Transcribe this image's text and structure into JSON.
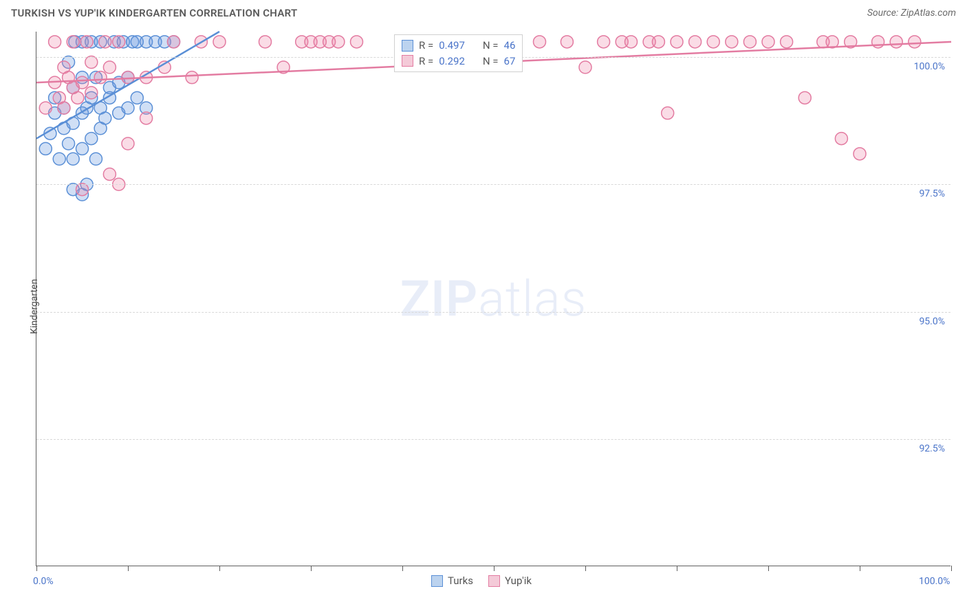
{
  "title": "TURKISH VS YUP'IK KINDERGARTEN CORRELATION CHART",
  "source": "Source: ZipAtlas.com",
  "ylabel": "Kindergarten",
  "watermark_bold": "ZIP",
  "watermark_light": "atlas",
  "chart": {
    "type": "scatter",
    "background_color": "#ffffff",
    "grid_color": "#d8d8d8",
    "axis_color": "#5e5e5e",
    "xlim": [
      0,
      100
    ],
    "ylim": [
      90,
      100.5
    ],
    "ytick_values": [
      92.5,
      95.0,
      97.5,
      100.0
    ],
    "ytick_labels": [
      "92.5%",
      "95.0%",
      "97.5%",
      "100.0%"
    ],
    "xtick_values": [
      0,
      10,
      20,
      30,
      40,
      50,
      60,
      70,
      80,
      90,
      100
    ],
    "xtick_label_left": "0.0%",
    "xtick_label_right": "100.0%",
    "marker_radius": 9,
    "marker_stroke_width": 1.5,
    "line_width": 2.5,
    "series": [
      {
        "name": "Turks",
        "color_fill": "rgba(99,148,222,0.30)",
        "color_stroke": "#5a8fd6",
        "swatch_fill": "#bcd3ef",
        "swatch_border": "#5a8fd6",
        "R": "0.497",
        "N": "46",
        "trend": {
          "x1": 0,
          "y1": 98.4,
          "x2": 20,
          "y2": 100.5
        },
        "points": [
          [
            1,
            98.2
          ],
          [
            1.5,
            98.5
          ],
          [
            2,
            98.9
          ],
          [
            2,
            99.2
          ],
          [
            2.5,
            98.0
          ],
          [
            3,
            98.6
          ],
          [
            3,
            99.0
          ],
          [
            3.5,
            98.3
          ],
          [
            3.5,
            99.9
          ],
          [
            4,
            97.4
          ],
          [
            4,
            98.0
          ],
          [
            4,
            98.7
          ],
          [
            4,
            99.4
          ],
          [
            4.2,
            100.3
          ],
          [
            5,
            97.3
          ],
          [
            5,
            98.2
          ],
          [
            5,
            98.9
          ],
          [
            5,
            99.6
          ],
          [
            5,
            100.3
          ],
          [
            5.5,
            97.5
          ],
          [
            5.5,
            99.0
          ],
          [
            6,
            98.4
          ],
          [
            6,
            99.2
          ],
          [
            6,
            100.3
          ],
          [
            6.5,
            98.0
          ],
          [
            6.5,
            99.6
          ],
          [
            7,
            98.6
          ],
          [
            7,
            99.0
          ],
          [
            7,
            100.3
          ],
          [
            7.5,
            98.8
          ],
          [
            8,
            99.2
          ],
          [
            8,
            99.4
          ],
          [
            8.5,
            100.3
          ],
          [
            9,
            98.9
          ],
          [
            9,
            99.5
          ],
          [
            9.5,
            100.3
          ],
          [
            10,
            99.0
          ],
          [
            10,
            99.6
          ],
          [
            10.5,
            100.3
          ],
          [
            11,
            99.2
          ],
          [
            11,
            100.3
          ],
          [
            12,
            99.0
          ],
          [
            12,
            100.3
          ],
          [
            13,
            100.3
          ],
          [
            14,
            100.3
          ],
          [
            15,
            100.3
          ]
        ]
      },
      {
        "name": "Yup'ik",
        "color_fill": "rgba(236,128,164,0.28)",
        "color_stroke": "#e37ba1",
        "swatch_fill": "#f4cad8",
        "swatch_border": "#e37ba1",
        "R": "0.292",
        "N": "67",
        "trend": {
          "x1": 0,
          "y1": 99.5,
          "x2": 100,
          "y2": 100.3
        },
        "points": [
          [
            1,
            99.0
          ],
          [
            2,
            99.5
          ],
          [
            2,
            100.3
          ],
          [
            2.5,
            99.2
          ],
          [
            3,
            99.0
          ],
          [
            3,
            99.8
          ],
          [
            3.5,
            99.6
          ],
          [
            4,
            99.4
          ],
          [
            4,
            100.3
          ],
          [
            4.5,
            99.2
          ],
          [
            5,
            97.4
          ],
          [
            5,
            99.5
          ],
          [
            5.5,
            100.3
          ],
          [
            6,
            99.3
          ],
          [
            6,
            99.9
          ],
          [
            7,
            99.6
          ],
          [
            7.5,
            100.3
          ],
          [
            8,
            97.7
          ],
          [
            8,
            99.8
          ],
          [
            9,
            97.5
          ],
          [
            9,
            100.3
          ],
          [
            10,
            98.3
          ],
          [
            10,
            99.6
          ],
          [
            12,
            98.8
          ],
          [
            12,
            99.6
          ],
          [
            14,
            99.8
          ],
          [
            15,
            100.3
          ],
          [
            17,
            99.6
          ],
          [
            18,
            100.3
          ],
          [
            20,
            100.3
          ],
          [
            25,
            100.3
          ],
          [
            27,
            99.8
          ],
          [
            29,
            100.3
          ],
          [
            30,
            100.3
          ],
          [
            31,
            100.3
          ],
          [
            32,
            100.3
          ],
          [
            33,
            100.3
          ],
          [
            35,
            100.3
          ],
          [
            45,
            100.3
          ],
          [
            48,
            100.3
          ],
          [
            50,
            100.3
          ],
          [
            52,
            100.3
          ],
          [
            55,
            100.3
          ],
          [
            58,
            100.3
          ],
          [
            60,
            99.8
          ],
          [
            62,
            100.3
          ],
          [
            64,
            100.3
          ],
          [
            65,
            100.3
          ],
          [
            67,
            100.3
          ],
          [
            68,
            100.3
          ],
          [
            69,
            98.9
          ],
          [
            70,
            100.3
          ],
          [
            72,
            100.3
          ],
          [
            74,
            100.3
          ],
          [
            76,
            100.3
          ],
          [
            78,
            100.3
          ],
          [
            80,
            100.3
          ],
          [
            82,
            100.3
          ],
          [
            84,
            99.2
          ],
          [
            86,
            100.3
          ],
          [
            87,
            100.3
          ],
          [
            88,
            98.4
          ],
          [
            89,
            100.3
          ],
          [
            90,
            98.1
          ],
          [
            92,
            100.3
          ],
          [
            94,
            100.3
          ],
          [
            96,
            100.3
          ]
        ]
      }
    ]
  },
  "legend_bottom": [
    {
      "label": "Turks"
    },
    {
      "label": "Yup'ik"
    }
  ]
}
